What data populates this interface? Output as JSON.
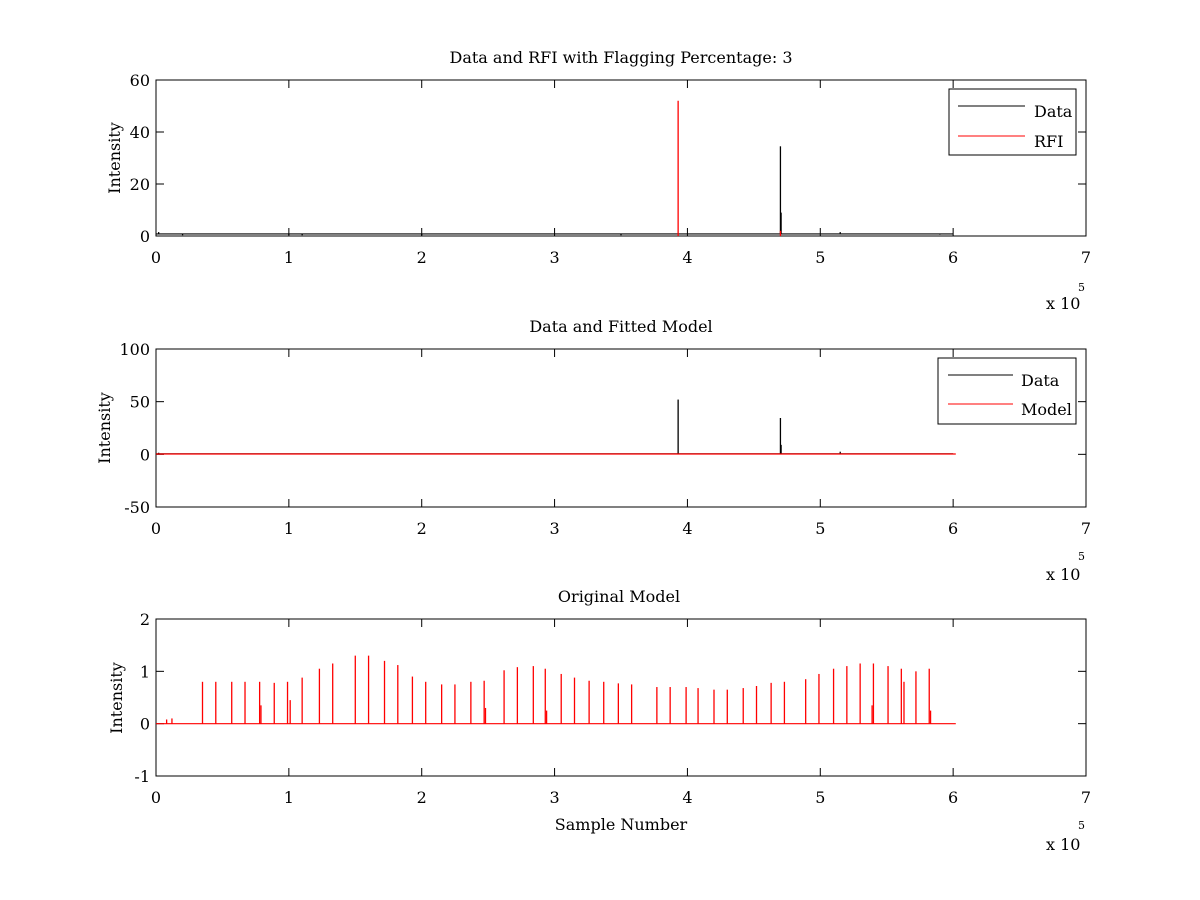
{
  "figure": {
    "background": "#ffffff"
  },
  "chart_data": [
    {
      "type": "line",
      "title": "Data and RFI with Flagging Percentage: 3",
      "xlabel": "",
      "ylabel": "Intensity",
      "xlim": [
        0,
        7
      ],
      "ylim": [
        0,
        60
      ],
      "xticks": [
        0,
        1,
        2,
        3,
        4,
        5,
        6,
        7
      ],
      "yticks": [
        0,
        20,
        40,
        60
      ],
      "x_multiplier": "x 10",
      "x_multiplier_exponent": "5",
      "x_units": "x 10^5 samples",
      "legend": {
        "placement": "top-right",
        "entries": [
          {
            "name": "Data",
            "color": "#000000"
          },
          {
            "name": "RFI",
            "color": "#ff0000"
          }
        ]
      },
      "series": [
        {
          "name": "Data",
          "color": "#000000",
          "baseline": 0.8,
          "x_end": 6.0,
          "spikes": [
            [
              0.02,
              1.5
            ],
            [
              0.2,
              0.3
            ],
            [
              1.0,
              0.4
            ],
            [
              1.1,
              0.3
            ],
            [
              2.0,
              0.3
            ],
            [
              3.5,
              0.3
            ],
            [
              4.7,
              34.5
            ],
            [
              4.705,
              9.0
            ],
            [
              5.15,
              1.5
            ],
            [
              5.9,
              0.5
            ]
          ]
        },
        {
          "name": "RFI",
          "color": "#ff0000",
          "spikes": [
            [
              3.93,
              52.0
            ],
            [
              4.7,
              2.0
            ]
          ]
        }
      ]
    },
    {
      "type": "line",
      "title": "Data and Fitted Model",
      "xlabel": "",
      "ylabel": "Intensity",
      "xlim": [
        0,
        7
      ],
      "ylim": [
        -50,
        100
      ],
      "xticks": [
        0,
        1,
        2,
        3,
        4,
        5,
        6,
        7
      ],
      "yticks": [
        -50,
        0,
        50,
        100
      ],
      "x_multiplier": "x 10",
      "x_multiplier_exponent": "5",
      "x_units": "x 10^5 samples",
      "legend": {
        "placement": "top-right",
        "entries": [
          {
            "name": "Data",
            "color": "#000000"
          },
          {
            "name": "Model",
            "color": "#ff0000"
          }
        ]
      },
      "series": [
        {
          "name": "Data",
          "color": "#000000",
          "baseline": 0.5,
          "x_end": 6.0,
          "spikes": [
            [
              0.02,
              1.5
            ],
            [
              3.93,
              52.0
            ],
            [
              4.7,
              34.5
            ],
            [
              4.705,
              9.0
            ],
            [
              5.15,
              2.5
            ]
          ]
        },
        {
          "name": "Model",
          "color": "#ff0000",
          "baseline": 0.3,
          "x_end": 6.02,
          "spikes": []
        }
      ]
    },
    {
      "type": "line",
      "title": "Original Model",
      "xlabel": "Sample Number",
      "ylabel": "Intensity",
      "xlim": [
        0,
        7
      ],
      "ylim": [
        -1,
        2
      ],
      "xticks": [
        0,
        1,
        2,
        3,
        4,
        5,
        6,
        7
      ],
      "yticks": [
        -1,
        0,
        1,
        2
      ],
      "x_multiplier": "x 10",
      "x_multiplier_exponent": "5",
      "x_units": "x 10^5 samples",
      "series": [
        {
          "name": "Model",
          "color": "#ff0000",
          "baseline": 0.0,
          "x_end": 6.02,
          "spikes": [
            [
              0.35,
              0.8
            ],
            [
              0.45,
              0.8
            ],
            [
              0.57,
              0.8
            ],
            [
              0.67,
              0.8
            ],
            [
              0.78,
              0.8
            ],
            [
              0.89,
              0.78
            ],
            [
              0.99,
              0.8
            ],
            [
              1.1,
              0.88
            ],
            [
              1.23,
              1.05
            ],
            [
              1.33,
              1.15
            ],
            [
              1.5,
              1.3
            ],
            [
              1.6,
              1.3
            ],
            [
              1.72,
              1.2
            ],
            [
              1.82,
              1.12
            ],
            [
              1.93,
              0.9
            ],
            [
              2.03,
              0.8
            ],
            [
              2.15,
              0.75
            ],
            [
              2.25,
              0.75
            ],
            [
              2.37,
              0.8
            ],
            [
              2.47,
              0.82
            ],
            [
              2.62,
              1.02
            ],
            [
              2.72,
              1.08
            ],
            [
              2.84,
              1.1
            ],
            [
              2.93,
              1.05
            ],
            [
              3.05,
              0.95
            ],
            [
              3.15,
              0.88
            ],
            [
              3.26,
              0.82
            ],
            [
              3.37,
              0.8
            ],
            [
              3.48,
              0.77
            ],
            [
              3.58,
              0.75
            ],
            [
              3.77,
              0.7
            ],
            [
              3.87,
              0.7
            ],
            [
              3.99,
              0.7
            ],
            [
              4.08,
              0.68
            ],
            [
              4.2,
              0.65
            ],
            [
              4.3,
              0.65
            ],
            [
              4.42,
              0.68
            ],
            [
              4.52,
              0.72
            ],
            [
              4.63,
              0.78
            ],
            [
              4.73,
              0.8
            ],
            [
              4.89,
              0.85
            ],
            [
              4.99,
              0.95
            ],
            [
              5.1,
              1.05
            ],
            [
              5.2,
              1.1
            ],
            [
              5.3,
              1.15
            ],
            [
              5.4,
              1.15
            ],
            [
              5.51,
              1.1
            ],
            [
              5.61,
              1.05
            ],
            [
              5.72,
              1.0
            ],
            [
              5.82,
              1.05
            ],
            [
              0.08,
              0.08
            ],
            [
              0.12,
              0.1
            ],
            [
              0.79,
              0.35
            ],
            [
              1.01,
              0.45
            ],
            [
              5.39,
              0.35
            ],
            [
              5.63,
              0.8
            ],
            [
              5.83,
              0.25
            ],
            [
              2.48,
              0.3
            ],
            [
              2.94,
              0.25
            ]
          ]
        }
      ]
    }
  ]
}
